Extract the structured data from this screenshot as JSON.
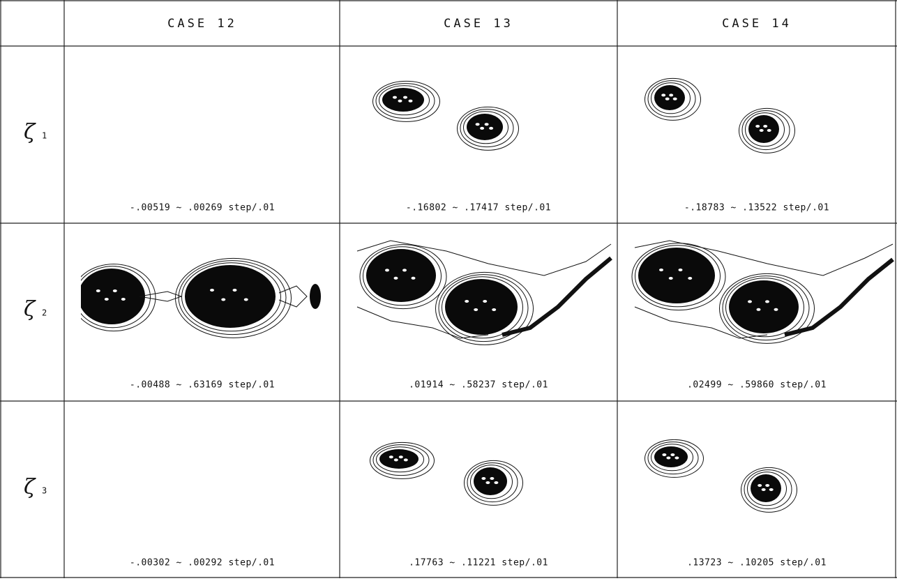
{
  "header": {
    "columns": [
      "CASE 12",
      "CASE 13",
      "CASE 14"
    ]
  },
  "rows": [
    {
      "label": "ζ",
      "index": "1",
      "captions": [
        "-.00519 ~ .00269  step/.01",
        "-.16802 ~ .17417  step/.01",
        "-.18783 ~ .13522  step/.01"
      ]
    },
    {
      "label": "ζ",
      "index": "2",
      "captions": [
        "-.00488 ~ .63169  step/.01",
        ".01914 ~ .58237  step/.01",
        ".02499 ~ .59860  step/.01"
      ]
    },
    {
      "label": "ζ",
      "index": "3",
      "captions": [
        "-.00302 ~ .00292  step/.01",
        ".17763 ~ .11221  step/.01",
        ".13723 ~ .10205  step/.01"
      ]
    }
  ]
}
